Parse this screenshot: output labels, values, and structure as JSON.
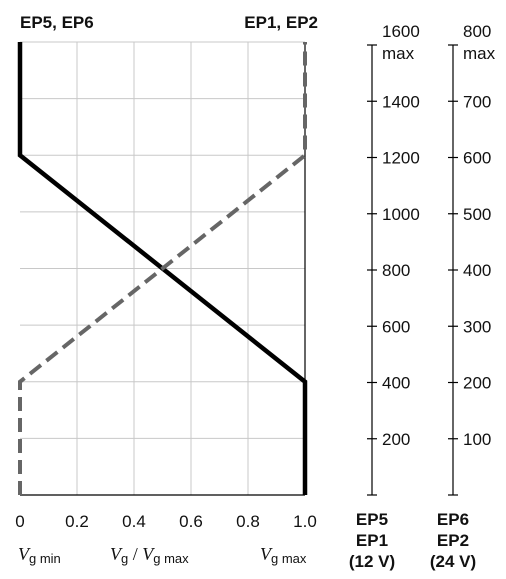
{
  "chart_data": {
    "type": "line",
    "x_ticks": [
      "0",
      "0.2",
      "0.4",
      "0.6",
      "0.8",
      "1.0"
    ],
    "xlim": [
      0,
      1
    ],
    "grid": true,
    "headers": {
      "left": "EP5, EP6",
      "right": "EP1, EP2"
    },
    "x_bottom_labels": {
      "left": {
        "main": "V",
        "sub": "g min"
      },
      "middle": {
        "main": "V",
        "sub": "g",
        "sep": " / ",
        "main2": "V",
        "sub2": "g max"
      },
      "right": {
        "main": "V",
        "sub": "g max"
      }
    },
    "axes": [
      {
        "id": "axis-12v",
        "ylim": [
          0,
          1600
        ],
        "ticks": [
          200,
          400,
          600,
          800,
          1000,
          1200,
          1400,
          1600
        ],
        "tick_labels": [
          "200",
          "400",
          "600",
          "800",
          "1000",
          "1200",
          "1400",
          "1600"
        ],
        "max_label": "max",
        "caption": [
          "EP5",
          "EP1",
          "(12 V)"
        ]
      },
      {
        "id": "axis-24v",
        "ylim": [
          0,
          800
        ],
        "ticks": [
          100,
          200,
          300,
          400,
          500,
          600,
          700,
          800
        ],
        "tick_labels": [
          "100",
          "200",
          "300",
          "400",
          "500",
          "600",
          "700",
          "800"
        ],
        "max_label": "max",
        "caption": [
          "EP6",
          "EP2",
          "(24 V)"
        ]
      }
    ],
    "series": [
      {
        "style": "solid",
        "color": "#000000",
        "points": [
          [
            0,
            1600
          ],
          [
            0,
            1200
          ],
          [
            1,
            400
          ],
          [
            1,
            0
          ]
        ]
      },
      {
        "style": "dashed",
        "color": "#666666",
        "points": [
          [
            0,
            0
          ],
          [
            0,
            400
          ],
          [
            1,
            1200
          ],
          [
            1,
            1600
          ]
        ]
      }
    ]
  }
}
